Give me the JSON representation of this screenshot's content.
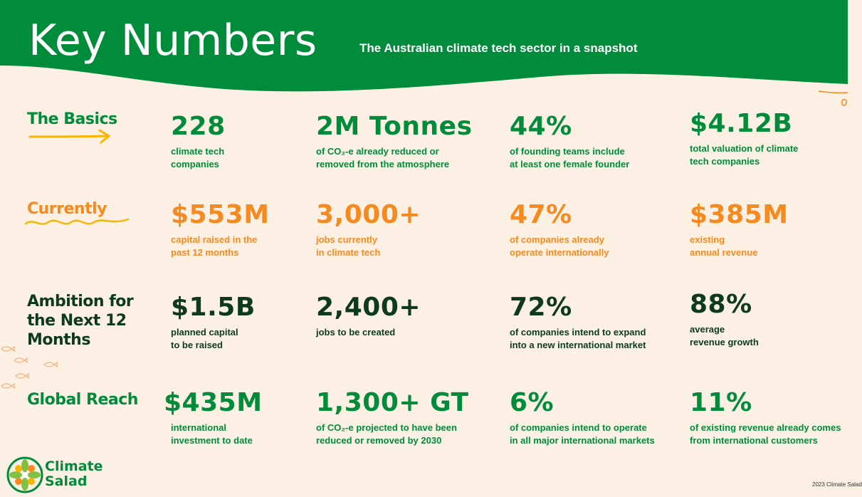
{
  "header": {
    "title": "Key Numbers",
    "subtitle": "The Australian climate tech sector in a snapshot"
  },
  "colors": {
    "green": "#008c3a",
    "orange": "#f68a1e",
    "dark": "#0d3a1c",
    "yellow": "#f7b500",
    "background": "#fcf0e5"
  },
  "rows": [
    {
      "label": "The Basics",
      "stats": [
        {
          "value": "228",
          "desc": "climate tech\ncompanies"
        },
        {
          "value": "2M Tonnes",
          "desc": "of CO₂-e already reduced or\nremoved from the atmosphere"
        },
        {
          "value": "44%",
          "desc": "of founding teams include\nat least one female founder"
        },
        {
          "value": "$4.12B",
          "desc": "total valuation of climate\ntech companies"
        }
      ]
    },
    {
      "label": "Currently",
      "stats": [
        {
          "value": "$553M",
          "desc": "capital raised in the\npast 12 months"
        },
        {
          "value": "3,000+",
          "desc": "jobs currently\nin climate tech"
        },
        {
          "value": "47%",
          "desc": "of companies already\noperate internationally"
        },
        {
          "value": "$385M",
          "desc": "existing\nannual revenue"
        }
      ]
    },
    {
      "label": "Ambition for\nthe Next 12\nMonths",
      "stats": [
        {
          "value": "$1.5B",
          "desc": "planned capital\nto be raised"
        },
        {
          "value": "2,400+",
          "desc": "jobs to be created"
        },
        {
          "value": "72%",
          "desc": "of companies intend to expand\ninto a new international market"
        },
        {
          "value": "88%",
          "desc": "average\nrevenue growth"
        }
      ]
    },
    {
      "label": "Global Reach",
      "stats": [
        {
          "value": "$435M",
          "desc": "international\ninvestment to date"
        },
        {
          "value": "1,300+ GT",
          "desc": "of CO₂-e projected to have been\nreduced or removed by 2030"
        },
        {
          "value": "6%",
          "desc": "of companies intend to operate\nin all major international markets"
        },
        {
          "value": "11%",
          "desc": "of existing revenue already comes\nfrom international customers"
        }
      ]
    }
  ],
  "logo": {
    "name": "Climate\nSalad",
    "icon": "salad-wheel-icon"
  },
  "footer": {
    "note": "2023 Climate Salad"
  }
}
